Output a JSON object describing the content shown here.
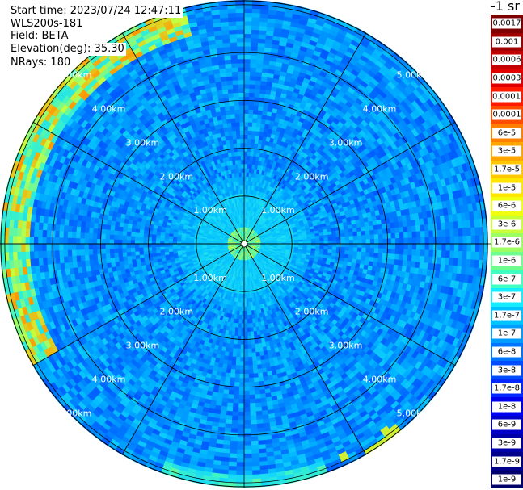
{
  "header": {
    "start_time": "Start time: 2023/07/24 12:47:11",
    "instrument": "WLS200s-181",
    "field": "Field: BETA",
    "elevation": "Elevation(deg): 35.30",
    "nrays": "NRays: 180"
  },
  "colorbar": {
    "units_label": "-1 sr",
    "labels": [
      "0.0017",
      "0.001",
      "0.0006",
      "0.0003",
      "0.00017",
      "0.0001",
      "6e-5",
      "3e-5",
      "1.7e-5",
      "1e-5",
      "6e-6",
      "3e-6",
      "1.7e-6",
      "1e-6",
      "6e-7",
      "3e-7",
      "1.7e-7",
      "1e-7",
      "6e-8",
      "3e-8",
      "1.7e-8",
      "1e-8",
      "6e-9",
      "3e-9",
      "1.7e-9",
      "1e-9"
    ],
    "colors": [
      "#7f0000",
      "#a00000",
      "#c40000",
      "#e00000",
      "#ff1a00",
      "#ff4d00",
      "#ff8000",
      "#ffa500",
      "#ffc800",
      "#ffe600",
      "#f0ff10",
      "#c8ff38",
      "#9cff62",
      "#70ff8e",
      "#40ffc0",
      "#14ecff",
      "#00c4ff",
      "#009cff",
      "#0074ff",
      "#004cff",
      "#0028ff",
      "#0000f0",
      "#0000c8",
      "#0000a8",
      "#00008a",
      "#00006a"
    ]
  },
  "chart_data": {
    "type": "heatmap",
    "projection": "polar (PPI scan)",
    "elevation_deg": 35.3,
    "n_rays": 180,
    "field": "BETA",
    "range_rings_km": [
      1,
      2,
      3,
      4,
      5
    ],
    "range_ring_labels": [
      "1.00km",
      "2.00km",
      "3.00km",
      "4.00km",
      "5.00km"
    ],
    "max_range_km": 5.1,
    "spokes_deg": [
      0,
      30,
      60,
      90,
      120,
      150,
      180,
      210,
      240,
      270,
      300,
      330
    ],
    "background_level": "1e-7 to 3e-8",
    "features": [
      {
        "description": "elevated band",
        "azimuth_deg_range": [
          240,
          345
        ],
        "range_km": [
          4.4,
          5.1
        ],
        "level": "1e-6 to 1e-5"
      },
      {
        "description": "weak return near center",
        "range_km": [
          0.3,
          1.0
        ],
        "level": "3e-7"
      }
    ]
  }
}
